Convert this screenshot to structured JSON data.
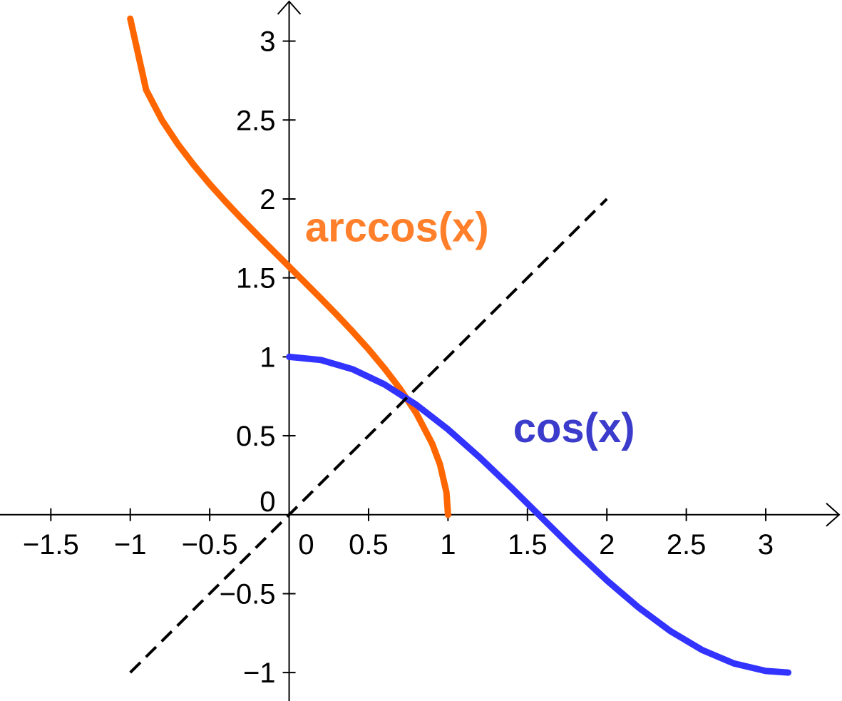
{
  "chart_data": {
    "type": "line",
    "xlim": [
      -1.82,
      3.48
    ],
    "ylim": [
      -1.18,
      3.26
    ],
    "grid": false,
    "x_ticks": [
      {
        "value": -1.5,
        "label": "−1.5"
      },
      {
        "value": -1,
        "label": "−1"
      },
      {
        "value": -0.5,
        "label": "−0.5"
      },
      {
        "value": 0,
        "label": "0"
      },
      {
        "value": 0.5,
        "label": "0.5"
      },
      {
        "value": 1,
        "label": "1"
      },
      {
        "value": 1.5,
        "label": "1.5"
      },
      {
        "value": 2,
        "label": "2"
      },
      {
        "value": 2.5,
        "label": "2.5"
      },
      {
        "value": 3,
        "label": "3"
      }
    ],
    "y_ticks": [
      {
        "value": -1,
        "label": "−1"
      },
      {
        "value": -0.5,
        "label": "−0.5"
      },
      {
        "value": 0,
        "label": "0"
      },
      {
        "value": 0.5,
        "label": "0.5"
      },
      {
        "value": 1,
        "label": "1"
      },
      {
        "value": 1.5,
        "label": "1.5"
      },
      {
        "value": 2,
        "label": "2"
      },
      {
        "value": 2.5,
        "label": "2.5"
      },
      {
        "value": 3,
        "label": "3"
      }
    ],
    "series": [
      {
        "name": "arccos(x)",
        "color": "#ff6600",
        "label_color": "#ff7f2a",
        "style": "solid",
        "x": [
          -1.0,
          -0.9,
          -0.8,
          -0.7,
          -0.6,
          -0.5,
          -0.4,
          -0.3,
          -0.2,
          -0.1,
          0.0,
          0.1,
          0.2,
          0.3,
          0.4,
          0.5,
          0.6,
          0.7,
          0.8,
          0.9,
          0.95,
          0.99,
          1.0
        ],
        "y": [
          3.1416,
          2.6906,
          2.4981,
          2.3462,
          2.2143,
          2.0944,
          1.9823,
          1.8755,
          1.7722,
          1.671,
          1.5708,
          1.4706,
          1.3694,
          1.2661,
          1.1593,
          1.0472,
          0.9273,
          0.7954,
          0.6435,
          0.451,
          0.3176,
          0.1415,
          0.0
        ]
      },
      {
        "name": "cos(x)",
        "color": "#3333ff",
        "label_color": "#3c3ccc",
        "style": "solid",
        "x": [
          0.0,
          0.2,
          0.4,
          0.6,
          0.8,
          1.0,
          1.2,
          1.4,
          1.6,
          1.8,
          2.0,
          2.2,
          2.4,
          2.6,
          2.8,
          3.0,
          3.1416
        ],
        "y": [
          1.0,
          0.9801,
          0.9211,
          0.8253,
          0.6967,
          0.5403,
          0.3624,
          0.17,
          -0.0292,
          -0.2272,
          -0.4161,
          -0.5885,
          -0.7374,
          -0.8569,
          -0.9422,
          -0.99,
          -1.0
        ]
      },
      {
        "style": "dashed",
        "color": "#000000",
        "x": [
          -1.0,
          2.0
        ],
        "y": [
          -1.0,
          2.0
        ]
      }
    ]
  }
}
